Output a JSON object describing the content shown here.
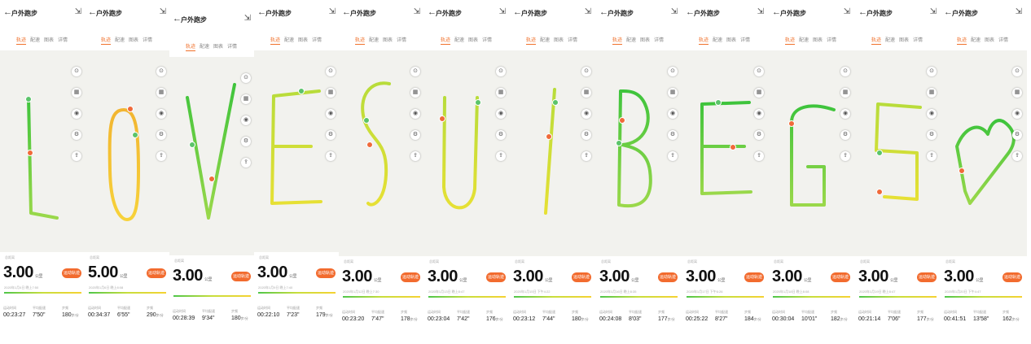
{
  "panels": [
    {
      "title": "户外跑步",
      "tabs": [
        "轨迹",
        "配速",
        "图表",
        "详情"
      ],
      "distance": "3.00",
      "unit": "公里",
      "button": "运动轨迹",
      "date": "2020年1月4日 晚上7:50",
      "duration": "00:23:27",
      "pace": "7'50\"",
      "cadence": "180",
      "cadence_unit": "步/分",
      "letter": "L"
    },
    {
      "title": "户外跑步",
      "tabs": [
        "轨迹",
        "配速",
        "图表",
        "详情"
      ],
      "distance": "5.00",
      "unit": "公里",
      "button": "运动轨迹",
      "date": "2020年1月6日 晚上8:08",
      "duration": "00:34:37",
      "pace": "6'55\"",
      "cadence": "290",
      "cadence_unit": "步/分",
      "letter": "O"
    },
    {
      "title": "户外跑步",
      "tabs": [
        "轨迹",
        "配速",
        "图表",
        "详情"
      ],
      "distance": "3.00",
      "unit": "公里",
      "button": "运动轨迹",
      "date": "",
      "duration": "00:28:39",
      "pace": "9'34\"",
      "cadence": "180",
      "cadence_unit": "步/分",
      "letter": "V"
    },
    {
      "title": "户外跑步",
      "tabs": [
        "轨迹",
        "配速",
        "图表",
        "详情"
      ],
      "distance": "3.00",
      "unit": "公里",
      "button": "运动轨迹",
      "date": "2020年1月9日 晚上7:40",
      "duration": "00:22:10",
      "pace": "7'23\"",
      "cadence": "179",
      "cadence_unit": "步/分",
      "letter": "E"
    },
    {
      "title": "户外跑步",
      "tabs": [
        "轨迹",
        "配速",
        "图表",
        "详情"
      ],
      "distance": "3.00",
      "unit": "公里",
      "button": "运动轨迹",
      "date": "2020年1月12日 晚上7:30",
      "duration": "00:23:20",
      "pace": "7'47\"",
      "cadence": "178",
      "cadence_unit": "步/分",
      "letter": "S"
    },
    {
      "title": "户外跑步",
      "tabs": [
        "轨迹",
        "配速",
        "图表",
        "详情"
      ],
      "distance": "3.00",
      "unit": "公里",
      "button": "运动轨迹",
      "date": "2020年1月13日 晚上8:47",
      "duration": "00:23:04",
      "pace": "7'42\"",
      "cadence": "176",
      "cadence_unit": "步/分",
      "letter": "U"
    },
    {
      "title": "户外跑步",
      "tabs": [
        "轨迹",
        "配速",
        "图表",
        "详情"
      ],
      "distance": "3.00",
      "unit": "公里",
      "button": "运动轨迹",
      "date": "2020年1月15日 下午4:22",
      "duration": "00:23:12",
      "pace": "7'44\"",
      "cadence": "180",
      "cadence_unit": "步/分",
      "letter": "I"
    },
    {
      "title": "户外跑步",
      "tabs": [
        "轨迹",
        "配速",
        "图表",
        "详情"
      ],
      "distance": "3.00",
      "unit": "公里",
      "button": "运动轨迹",
      "date": "2020年1月16日 晚上8:35",
      "duration": "00:24:08",
      "pace": "8'03\"",
      "cadence": "177",
      "cadence_unit": "步/分",
      "letter": "B"
    },
    {
      "title": "户外跑步",
      "tabs": [
        "轨迹",
        "配速",
        "图表",
        "详情"
      ],
      "distance": "3.00",
      "unit": "公里",
      "button": "运动轨迹",
      "date": "2020年1月17日 下午6:26",
      "duration": "00:25:22",
      "pace": "8'27\"",
      "cadence": "184",
      "cadence_unit": "步/分",
      "letter": "E"
    },
    {
      "title": "户外跑步",
      "tabs": [
        "轨迹",
        "配速",
        "图表",
        "详情"
      ],
      "distance": "3.00",
      "unit": "公里",
      "button": "运动轨迹",
      "date": "2020年1月18日 晚上8:08",
      "duration": "00:30:04",
      "pace": "10'01\"",
      "cadence": "182",
      "cadence_unit": "步/分",
      "letter": "G"
    },
    {
      "title": "户外跑步",
      "tabs": [
        "轨迹",
        "配速",
        "图表",
        "详情"
      ],
      "distance": "3.00",
      "unit": "公里",
      "button": "运动轨迹",
      "date": "2020年1月19日 晚上8:47",
      "duration": "00:21:14",
      "pace": "7'06\"",
      "cadence": "177",
      "cadence_unit": "步/分",
      "letter": "S"
    },
    {
      "title": "户外跑步",
      "tabs": [
        "轨迹",
        "配速",
        "图表",
        "详情"
      ],
      "distance": "3.00",
      "unit": "公里",
      "button": "运动轨迹",
      "date": "2020年1月20日 下午4:47",
      "duration": "00:41:51",
      "pace": "13'58\"",
      "cadence": "162",
      "cadence_unit": "步/分",
      "letter": "heart"
    }
  ],
  "labels": {
    "back_glyph": "←",
    "share_glyph": "⇲",
    "duration_label": "运动时间",
    "pace_label": "平均配速",
    "cadence_label": "步频",
    "small_label": "总距离"
  },
  "colors": {
    "accent": "#f26b2e",
    "route_green": "#4cc74a",
    "route_yellow": "#e8d82c",
    "map_bg": "#f2f2ee"
  },
  "icons": [
    "compass-icon",
    "map-layers-icon",
    "eye-icon",
    "settings-icon",
    "share-track-icon"
  ]
}
